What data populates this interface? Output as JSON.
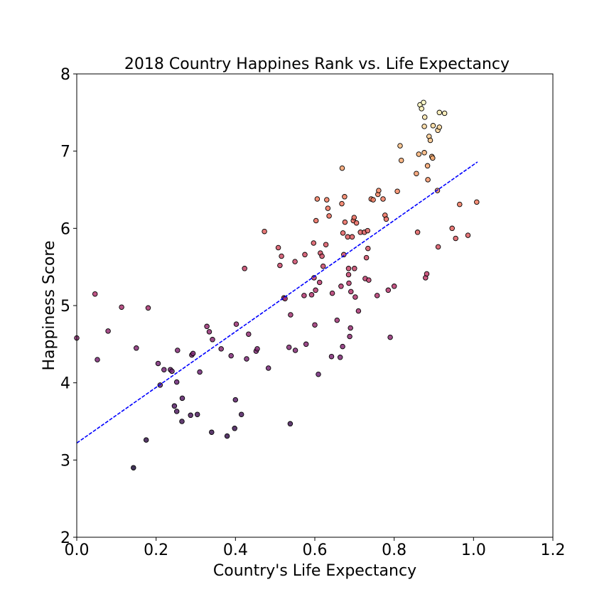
{
  "chart_data": {
    "type": "scatter",
    "title": "2018 Country Happines Rank vs. Life Expectancy",
    "xlabel": "Country's Life Expectancy",
    "ylabel": "Happiness Score",
    "xlim": [
      0.0,
      1.2
    ],
    "ylim": [
      2,
      8
    ],
    "xticks": [
      "0.0",
      "0.2",
      "0.4",
      "0.6",
      "0.8",
      "1.0",
      "1.2"
    ],
    "yticks": [
      "2",
      "3",
      "4",
      "5",
      "6",
      "7",
      "8"
    ],
    "grid": false,
    "colormap": "magma",
    "regression_line": {
      "x": [
        0.0,
        1.01
      ],
      "y": [
        3.22,
        6.86
      ],
      "color": "#0000ff",
      "style": "dashed"
    },
    "points": [
      {
        "x": 0.0,
        "y": 4.58
      },
      {
        "x": 0.046,
        "y": 5.15
      },
      {
        "x": 0.052,
        "y": 4.3
      },
      {
        "x": 0.079,
        "y": 4.67
      },
      {
        "x": 0.113,
        "y": 4.98
      },
      {
        "x": 0.143,
        "y": 2.9
      },
      {
        "x": 0.15,
        "y": 4.45
      },
      {
        "x": 0.175,
        "y": 3.26
      },
      {
        "x": 0.18,
        "y": 4.97
      },
      {
        "x": 0.205,
        "y": 4.25
      },
      {
        "x": 0.21,
        "y": 3.97
      },
      {
        "x": 0.22,
        "y": 4.17
      },
      {
        "x": 0.236,
        "y": 4.17
      },
      {
        "x": 0.24,
        "y": 4.15
      },
      {
        "x": 0.246,
        "y": 3.7
      },
      {
        "x": 0.252,
        "y": 3.63
      },
      {
        "x": 0.252,
        "y": 4.01
      },
      {
        "x": 0.254,
        "y": 4.42
      },
      {
        "x": 0.265,
        "y": 3.5
      },
      {
        "x": 0.266,
        "y": 3.8
      },
      {
        "x": 0.287,
        "y": 3.58
      },
      {
        "x": 0.29,
        "y": 4.36
      },
      {
        "x": 0.293,
        "y": 4.38
      },
      {
        "x": 0.304,
        "y": 3.59
      },
      {
        "x": 0.31,
        "y": 4.14
      },
      {
        "x": 0.328,
        "y": 4.73
      },
      {
        "x": 0.334,
        "y": 4.66
      },
      {
        "x": 0.34,
        "y": 3.36
      },
      {
        "x": 0.342,
        "y": 4.56
      },
      {
        "x": 0.364,
        "y": 4.44
      },
      {
        "x": 0.379,
        "y": 3.31
      },
      {
        "x": 0.389,
        "y": 4.35
      },
      {
        "x": 0.398,
        "y": 3.41
      },
      {
        "x": 0.4,
        "y": 3.78
      },
      {
        "x": 0.402,
        "y": 4.76
      },
      {
        "x": 0.415,
        "y": 3.59
      },
      {
        "x": 0.423,
        "y": 5.48
      },
      {
        "x": 0.428,
        "y": 4.31
      },
      {
        "x": 0.433,
        "y": 4.63
      },
      {
        "x": 0.452,
        "y": 4.41
      },
      {
        "x": 0.455,
        "y": 4.44
      },
      {
        "x": 0.473,
        "y": 5.96
      },
      {
        "x": 0.483,
        "y": 4.19
      },
      {
        "x": 0.508,
        "y": 5.75
      },
      {
        "x": 0.512,
        "y": 5.52
      },
      {
        "x": 0.516,
        "y": 5.64
      },
      {
        "x": 0.522,
        "y": 5.1
      },
      {
        "x": 0.525,
        "y": 5.09
      },
      {
        "x": 0.535,
        "y": 4.46
      },
      {
        "x": 0.538,
        "y": 3.47
      },
      {
        "x": 0.539,
        "y": 4.88
      },
      {
        "x": 0.55,
        "y": 5.57
      },
      {
        "x": 0.551,
        "y": 4.42
      },
      {
        "x": 0.573,
        "y": 5.13
      },
      {
        "x": 0.575,
        "y": 5.66
      },
      {
        "x": 0.578,
        "y": 4.5
      },
      {
        "x": 0.592,
        "y": 5.14
      },
      {
        "x": 0.597,
        "y": 5.81
      },
      {
        "x": 0.598,
        "y": 5.36
      },
      {
        "x": 0.6,
        "y": 4.75
      },
      {
        "x": 0.602,
        "y": 5.2
      },
      {
        "x": 0.603,
        "y": 6.1
      },
      {
        "x": 0.606,
        "y": 6.38
      },
      {
        "x": 0.609,
        "y": 4.11
      },
      {
        "x": 0.612,
        "y": 5.3
      },
      {
        "x": 0.614,
        "y": 5.68
      },
      {
        "x": 0.618,
        "y": 5.64
      },
      {
        "x": 0.621,
        "y": 5.51
      },
      {
        "x": 0.628,
        "y": 5.79
      },
      {
        "x": 0.63,
        "y": 6.37
      },
      {
        "x": 0.633,
        "y": 6.26
      },
      {
        "x": 0.636,
        "y": 6.16
      },
      {
        "x": 0.642,
        "y": 4.34
      },
      {
        "x": 0.644,
        "y": 5.16
      },
      {
        "x": 0.656,
        "y": 4.81
      },
      {
        "x": 0.664,
        "y": 4.33
      },
      {
        "x": 0.666,
        "y": 5.25
      },
      {
        "x": 0.668,
        "y": 6.32
      },
      {
        "x": 0.669,
        "y": 6.78
      },
      {
        "x": 0.67,
        "y": 4.47
      },
      {
        "x": 0.671,
        "y": 5.94
      },
      {
        "x": 0.673,
        "y": 5.66
      },
      {
        "x": 0.675,
        "y": 6.41
      },
      {
        "x": 0.676,
        "y": 6.08
      },
      {
        "x": 0.683,
        "y": 5.89
      },
      {
        "x": 0.685,
        "y": 5.4
      },
      {
        "x": 0.685,
        "y": 5.48
      },
      {
        "x": 0.686,
        "y": 5.29
      },
      {
        "x": 0.688,
        "y": 4.6
      },
      {
        "x": 0.69,
        "y": 4.71
      },
      {
        "x": 0.691,
        "y": 5.18
      },
      {
        "x": 0.694,
        "y": 5.89
      },
      {
        "x": 0.697,
        "y": 6.1
      },
      {
        "x": 0.699,
        "y": 6.14
      },
      {
        "x": 0.7,
        "y": 5.48
      },
      {
        "x": 0.702,
        "y": 5.11
      },
      {
        "x": 0.705,
        "y": 6.07
      },
      {
        "x": 0.71,
        "y": 4.93
      },
      {
        "x": 0.715,
        "y": 5.95
      },
      {
        "x": 0.725,
        "y": 5.95
      },
      {
        "x": 0.727,
        "y": 5.35
      },
      {
        "x": 0.73,
        "y": 5.62
      },
      {
        "x": 0.733,
        "y": 5.97
      },
      {
        "x": 0.734,
        "y": 5.74
      },
      {
        "x": 0.736,
        "y": 5.33
      },
      {
        "x": 0.742,
        "y": 6.38
      },
      {
        "x": 0.747,
        "y": 6.37
      },
      {
        "x": 0.757,
        "y": 5.13
      },
      {
        "x": 0.759,
        "y": 6.44
      },
      {
        "x": 0.761,
        "y": 6.49
      },
      {
        "x": 0.772,
        "y": 6.38
      },
      {
        "x": 0.777,
        "y": 6.17
      },
      {
        "x": 0.78,
        "y": 6.12
      },
      {
        "x": 0.785,
        "y": 5.2
      },
      {
        "x": 0.79,
        "y": 4.59
      },
      {
        "x": 0.8,
        "y": 5.25
      },
      {
        "x": 0.808,
        "y": 6.48
      },
      {
        "x": 0.815,
        "y": 7.07
      },
      {
        "x": 0.818,
        "y": 6.88
      },
      {
        "x": 0.856,
        "y": 6.71
      },
      {
        "x": 0.859,
        "y": 5.95
      },
      {
        "x": 0.862,
        "y": 6.96
      },
      {
        "x": 0.865,
        "y": 7.6
      },
      {
        "x": 0.869,
        "y": 7.55
      },
      {
        "x": 0.874,
        "y": 7.63
      },
      {
        "x": 0.876,
        "y": 7.32
      },
      {
        "x": 0.876,
        "y": 6.98
      },
      {
        "x": 0.877,
        "y": 7.44
      },
      {
        "x": 0.879,
        "y": 5.36
      },
      {
        "x": 0.882,
        "y": 5.41
      },
      {
        "x": 0.884,
        "y": 6.81
      },
      {
        "x": 0.885,
        "y": 6.63
      },
      {
        "x": 0.888,
        "y": 7.19
      },
      {
        "x": 0.891,
        "y": 7.14
      },
      {
        "x": 0.895,
        "y": 6.93
      },
      {
        "x": 0.897,
        "y": 6.91
      },
      {
        "x": 0.898,
        "y": 7.33
      },
      {
        "x": 0.909,
        "y": 6.49
      },
      {
        "x": 0.91,
        "y": 7.27
      },
      {
        "x": 0.911,
        "y": 5.76
      },
      {
        "x": 0.914,
        "y": 7.31
      },
      {
        "x": 0.914,
        "y": 7.5
      },
      {
        "x": 0.927,
        "y": 7.49
      },
      {
        "x": 0.946,
        "y": 6.0
      },
      {
        "x": 0.955,
        "y": 5.87
      },
      {
        "x": 0.965,
        "y": 6.31
      },
      {
        "x": 0.986,
        "y": 5.91
      },
      {
        "x": 1.008,
        "y": 6.34
      }
    ]
  }
}
